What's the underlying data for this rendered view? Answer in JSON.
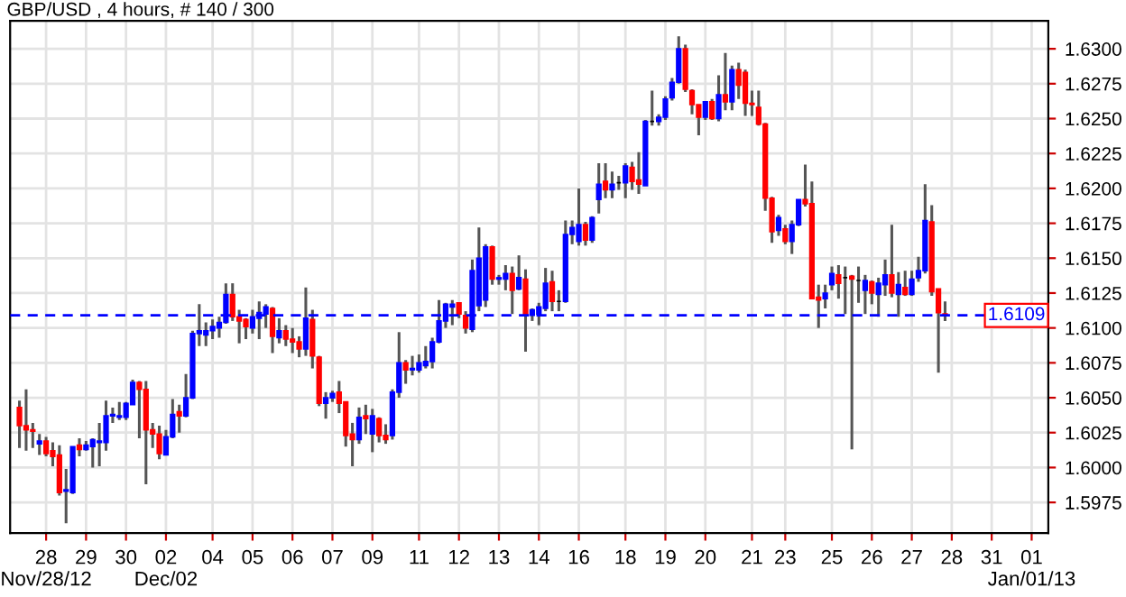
{
  "chart_data": {
    "type": "candlestick",
    "title": "GBP/USD , 4 hours, # 140 / 300",
    "categories": [
      null,
      null,
      null,
      null,
      "28\nNov/28/12",
      null,
      null,
      null,
      null,
      null,
      "29",
      null,
      null,
      null,
      null,
      null,
      "30",
      null,
      null,
      null,
      null,
      null,
      "02\nDec/02",
      null,
      null,
      null,
      null,
      null,
      null,
      "04",
      null,
      null,
      null,
      null,
      null,
      "05",
      null,
      null,
      null,
      null,
      null,
      "06",
      null,
      null,
      null,
      null,
      null,
      "07",
      null,
      null,
      null,
      null,
      null,
      "09",
      null,
      null,
      null,
      null,
      null,
      null,
      "11",
      null,
      null,
      null,
      null,
      null,
      "12",
      null,
      null,
      null,
      null,
      null,
      "13",
      null,
      null,
      null,
      null,
      null,
      "14",
      null,
      null,
      null,
      null,
      null,
      "16",
      null,
      null,
      null,
      null,
      null,
      null,
      "18",
      null,
      null,
      null,
      null,
      null,
      "19",
      null,
      null,
      null,
      null,
      null,
      "20",
      null,
      null,
      null,
      null,
      null,
      null,
      "21",
      null,
      null,
      null,
      null,
      "23",
      null,
      null,
      null,
      null,
      null,
      null,
      "25",
      null,
      null,
      null,
      null,
      null,
      "26",
      null,
      null,
      null,
      null,
      null,
      "27",
      null,
      null,
      null,
      null,
      null,
      "28",
      null,
      null,
      null,
      null,
      null,
      "31",
      null,
      null,
      null,
      null,
      null,
      "01\nJan/01/13",
      null,
      null
    ],
    "ohlc": [
      [
        1.6043,
        1.6048,
        1.6014,
        1.603
      ],
      [
        1.603,
        1.6056,
        1.6012,
        1.6027
      ],
      [
        1.6027,
        1.6032,
        1.6014,
        1.6026
      ],
      [
        1.6017,
        1.6024,
        1.6009,
        1.6019
      ],
      [
        1.6019,
        1.6022,
        1.6008,
        1.601
      ],
      [
        1.6012,
        1.6018,
        1.6001,
        1.6008
      ],
      [
        1.6009,
        1.6016,
        1.598,
        1.5982
      ],
      [
        1.5983,
        1.5999,
        1.596,
        1.5984
      ],
      [
        1.5982,
        1.6015,
        1.5981,
        1.6015
      ],
      [
        1.6016,
        1.6021,
        1.6008,
        1.6013
      ],
      [
        1.6013,
        1.6019,
        1.6012,
        1.6016
      ],
      [
        1.6015,
        1.6021,
        1.6,
        1.602
      ],
      [
        1.6018,
        1.6032,
        1.6001,
        1.6019
      ],
      [
        1.6018,
        1.6048,
        1.6012,
        1.6037
      ],
      [
        1.6037,
        1.6043,
        1.6032,
        1.6038
      ],
      [
        1.6036,
        1.6047,
        1.6034,
        1.6037
      ],
      [
        1.6036,
        1.6047,
        1.6034,
        1.6046
      ],
      [
        1.6045,
        1.6063,
        1.6045,
        1.6061
      ],
      [
        1.6061,
        1.6062,
        1.6021,
        1.6056
      ],
      [
        1.6056,
        1.6062,
        1.5988,
        1.6027
      ],
      [
        1.6027,
        1.6032,
        1.6014,
        1.6024
      ],
      [
        1.6024,
        1.603,
        1.6006,
        1.601
      ],
      [
        1.6009,
        1.6027,
        1.6009,
        1.6022
      ],
      [
        1.6022,
        1.6049,
        1.6021,
        1.6038
      ],
      [
        1.604,
        1.6045,
        1.6025,
        1.6037
      ],
      [
        1.6037,
        1.6067,
        1.6036,
        1.605
      ],
      [
        1.605,
        1.6098,
        1.6049,
        1.6096
      ],
      [
        1.6096,
        1.6117,
        1.6087,
        1.6098
      ],
      [
        1.6095,
        1.6104,
        1.6087,
        1.6098
      ],
      [
        1.6098,
        1.6106,
        1.6092,
        1.6101
      ],
      [
        1.61,
        1.6108,
        1.6093,
        1.6104
      ],
      [
        1.6104,
        1.6132,
        1.6103,
        1.6124
      ],
      [
        1.6124,
        1.6132,
        1.6105,
        1.6108
      ],
      [
        1.6108,
        1.6113,
        1.6089,
        1.6105
      ],
      [
        1.6106,
        1.6107,
        1.6092,
        1.6101
      ],
      [
        1.61,
        1.6113,
        1.6096,
        1.6108
      ],
      [
        1.6107,
        1.6119,
        1.6092,
        1.6111
      ],
      [
        1.611,
        1.6117,
        1.61,
        1.6115
      ],
      [
        1.6114,
        1.6115,
        1.6082,
        1.6094
      ],
      [
        1.6093,
        1.6107,
        1.6089,
        1.6098
      ],
      [
        1.6098,
        1.6102,
        1.6087,
        1.6092
      ],
      [
        1.6092,
        1.61,
        1.6082,
        1.609
      ],
      [
        1.609,
        1.6094,
        1.6079,
        1.6085
      ],
      [
        1.6085,
        1.6129,
        1.608,
        1.6107
      ],
      [
        1.6106,
        1.6113,
        1.6071,
        1.608
      ],
      [
        1.6079,
        1.608,
        1.6044,
        1.6046
      ],
      [
        1.6046,
        1.6054,
        1.6035,
        1.605
      ],
      [
        1.605,
        1.6055,
        1.6047,
        1.6053
      ],
      [
        1.6054,
        1.6062,
        1.6039,
        1.6046
      ],
      [
        1.6047,
        1.6047,
        1.6015,
        1.6023
      ],
      [
        1.6024,
        1.6032,
        1.6001,
        1.602
      ],
      [
        1.602,
        1.6043,
        1.6017,
        1.6036
      ],
      [
        1.6037,
        1.6045,
        1.6024,
        1.6035
      ],
      [
        1.6024,
        1.6042,
        1.6011,
        1.6037
      ],
      [
        1.6035,
        1.6036,
        1.6018,
        1.6023
      ],
      [
        1.6023,
        1.6031,
        1.6017,
        1.602
      ],
      [
        1.6023,
        1.6056,
        1.602,
        1.6054
      ],
      [
        1.6054,
        1.6097,
        1.605,
        1.6075
      ],
      [
        1.6075,
        1.6077,
        1.606,
        1.607
      ],
      [
        1.607,
        1.608,
        1.6066,
        1.6071
      ],
      [
        1.607,
        1.6081,
        1.6068,
        1.6075
      ],
      [
        1.6073,
        1.6087,
        1.6071,
        1.6076
      ],
      [
        1.6076,
        1.6093,
        1.6071,
        1.609
      ],
      [
        1.609,
        1.612,
        1.6089,
        1.6105
      ],
      [
        1.6105,
        1.6118,
        1.61,
        1.6117
      ],
      [
        1.6115,
        1.612,
        1.6102,
        1.6117
      ],
      [
        1.6118,
        1.6118,
        1.6107,
        1.611
      ],
      [
        1.6109,
        1.6112,
        1.6096,
        1.61
      ],
      [
        1.6099,
        1.6149,
        1.6097,
        1.6141
      ],
      [
        1.6116,
        1.6172,
        1.6112,
        1.615
      ],
      [
        1.612,
        1.616,
        1.6115,
        1.6158
      ],
      [
        1.6158,
        1.6159,
        1.6131,
        1.6135
      ],
      [
        1.6135,
        1.6138,
        1.6131,
        1.6136
      ],
      [
        1.6135,
        1.6145,
        1.6127,
        1.6139
      ],
      [
        1.6139,
        1.6144,
        1.611,
        1.6127
      ],
      [
        1.6128,
        1.6152,
        1.6127,
        1.6136
      ],
      [
        1.6135,
        1.6142,
        1.6083,
        1.611
      ],
      [
        1.6109,
        1.6114,
        1.6105,
        1.6113
      ],
      [
        1.611,
        1.6118,
        1.6102,
        1.6115
      ],
      [
        1.6114,
        1.6143,
        1.6112,
        1.6132
      ],
      [
        1.6133,
        1.6141,
        1.6112,
        1.6119
      ],
      [
        1.6119,
        1.6127,
        1.6112,
        1.6119
      ],
      [
        1.6119,
        1.6177,
        1.6118,
        1.6167
      ],
      [
        1.6167,
        1.6177,
        1.616,
        1.6172
      ],
      [
        1.6162,
        1.62,
        1.6159,
        1.6174
      ],
      [
        1.6174,
        1.6176,
        1.6159,
        1.6163
      ],
      [
        1.6163,
        1.618,
        1.6161,
        1.6179
      ],
      [
        1.6192,
        1.6218,
        1.6182,
        1.6203
      ],
      [
        1.6205,
        1.6218,
        1.6193,
        1.6199
      ],
      [
        1.6199,
        1.6212,
        1.6193,
        1.6203
      ],
      [
        1.6204,
        1.6209,
        1.6199,
        1.6204
      ],
      [
        1.6204,
        1.6218,
        1.6193,
        1.6216
      ],
      [
        1.6215,
        1.6219,
        1.6199,
        1.6205
      ],
      [
        1.6206,
        1.6226,
        1.6196,
        1.6203
      ],
      [
        1.6202,
        1.6249,
        1.6202,
        1.6248
      ],
      [
        1.6248,
        1.627,
        1.6245,
        1.6248
      ],
      [
        1.6248,
        1.6253,
        1.6245,
        1.6251
      ],
      [
        1.6251,
        1.6266,
        1.6249,
        1.6264
      ],
      [
        1.6265,
        1.6279,
        1.6263,
        1.6276
      ],
      [
        1.6276,
        1.6309,
        1.6275,
        1.63
      ],
      [
        1.63,
        1.6303,
        1.6269,
        1.6271
      ],
      [
        1.627,
        1.6271,
        1.6253,
        1.626
      ],
      [
        1.626,
        1.626,
        1.6238,
        1.6251
      ],
      [
        1.6251,
        1.6262,
        1.6249,
        1.6262
      ],
      [
        1.6262,
        1.6264,
        1.6249,
        1.625
      ],
      [
        1.625,
        1.6281,
        1.6248,
        1.6267
      ],
      [
        1.6267,
        1.6297,
        1.6256,
        1.6262
      ],
      [
        1.6262,
        1.6288,
        1.6256,
        1.6285
      ],
      [
        1.6285,
        1.629,
        1.6264,
        1.6274
      ],
      [
        1.6283,
        1.6285,
        1.6252,
        1.6261
      ],
      [
        1.6261,
        1.627,
        1.6252,
        1.626
      ],
      [
        1.6258,
        1.627,
        1.6245,
        1.6246
      ],
      [
        1.6246,
        1.6247,
        1.6184,
        1.6193
      ],
      [
        1.6193,
        1.6194,
        1.6161,
        1.6169
      ],
      [
        1.617,
        1.6181,
        1.6166,
        1.6179
      ],
      [
        1.6171,
        1.6174,
        1.616,
        1.6162
      ],
      [
        1.6162,
        1.6177,
        1.6153,
        1.6174
      ],
      [
        1.6174,
        1.6192,
        1.6173,
        1.6192
      ],
      [
        1.6192,
        1.6217,
        1.6187,
        1.6189
      ],
      [
        1.6189,
        1.6205,
        1.6121,
        1.6121
      ],
      [
        1.6122,
        1.6131,
        1.61,
        1.612
      ],
      [
        1.6121,
        1.6131,
        1.6114,
        1.6125
      ],
      [
        1.6131,
        1.6144,
        1.6127,
        1.6139
      ],
      [
        1.6138,
        1.6145,
        1.6121,
        1.6132
      ],
      [
        1.6136,
        1.6144,
        1.611,
        1.6136
      ],
      [
        1.6137,
        1.6138,
        1.6013,
        1.6135
      ],
      [
        1.6134,
        1.6144,
        1.6118,
        1.6134
      ],
      [
        1.6127,
        1.6138,
        1.611,
        1.6134
      ],
      [
        1.6133,
        1.6134,
        1.6117,
        1.6125
      ],
      [
        1.6124,
        1.6136,
        1.6108,
        1.6132
      ],
      [
        1.6131,
        1.6149,
        1.6123,
        1.6138
      ],
      [
        1.6138,
        1.6174,
        1.6122,
        1.6125
      ],
      [
        1.6124,
        1.614,
        1.6108,
        1.6131
      ],
      [
        1.6129,
        1.6141,
        1.6123,
        1.6124
      ],
      [
        1.6124,
        1.6141,
        1.6123,
        1.6135
      ],
      [
        1.6136,
        1.6151,
        1.6133,
        1.6141
      ],
      [
        1.6141,
        1.6203,
        1.6139,
        1.6177
      ],
      [
        1.6176,
        1.6188,
        1.6123,
        1.6126
      ],
      [
        1.6128,
        1.6128,
        1.6068,
        1.6111
      ],
      [
        1.611,
        1.6119,
        1.6105,
        1.6109
      ],
      null,
      null,
      null,
      null,
      null,
      null,
      null,
      null,
      null,
      null,
      null,
      null,
      null,
      null,
      null
    ],
    "colors": [
      "#ff0000",
      "#ff0000",
      "#ff0000",
      "#0000ff",
      "#ff0000",
      "#ff0000",
      "#ff0000",
      "#0000ff",
      "#0000ff",
      "#ff0000",
      "#0000ff",
      "#0000ff",
      "#0000ff",
      "#0000ff",
      "#0000ff",
      "#0000ff",
      "#0000ff",
      "#0000ff",
      "#ff0000",
      "#ff0000",
      "#ff0000",
      "#ff0000",
      "#0000ff",
      "#0000ff",
      "#ff0000",
      "#0000ff",
      "#0000ff",
      "#0000ff",
      "#0000ff",
      "#0000ff",
      "#0000ff",
      "#0000ff",
      "#ff0000",
      "#ff0000",
      "#ff0000",
      "#0000ff",
      "#0000ff",
      "#0000ff",
      "#ff0000",
      "#0000ff",
      "#ff0000",
      "#ff0000",
      "#ff0000",
      "#0000ff",
      "#ff0000",
      "#ff0000",
      "#0000ff",
      "#0000ff",
      "#ff0000",
      "#ff0000",
      "#ff0000",
      "#0000ff",
      "#ff0000",
      "#0000ff",
      "#ff0000",
      "#ff0000",
      "#0000ff",
      "#0000ff",
      "#ff0000",
      "#0000ff",
      "#0000ff",
      "#0000ff",
      "#0000ff",
      "#0000ff",
      "#0000ff",
      "#0000ff",
      "#ff0000",
      "#ff0000",
      "#0000ff",
      "#0000ff",
      "#0000ff",
      "#ff0000",
      "#0000ff",
      "#0000ff",
      "#ff0000",
      "#0000ff",
      "#ff0000",
      "#0000ff",
      "#0000ff",
      "#0000ff",
      "#ff0000",
      "#000000",
      "#0000ff",
      "#0000ff",
      "#0000ff",
      "#ff0000",
      "#0000ff",
      "#0000ff",
      "#ff0000",
      "#0000ff",
      "#000000",
      "#0000ff",
      "#ff0000",
      "#ff0000",
      "#0000ff",
      "#000000",
      "#0000ff",
      "#0000ff",
      "#0000ff",
      "#0000ff",
      "#ff0000",
      "#ff0000",
      "#ff0000",
      "#0000ff",
      "#ff0000",
      "#0000ff",
      "#ff0000",
      "#0000ff",
      "#ff0000",
      "#ff0000",
      "#ff0000",
      "#ff0000",
      "#ff0000",
      "#ff0000",
      "#0000ff",
      "#ff0000",
      "#0000ff",
      "#0000ff",
      "#ff0000",
      "#ff0000",
      "#ff0000",
      "#0000ff",
      "#0000ff",
      "#ff0000",
      "#000000",
      "#ff0000",
      "#000000",
      "#0000ff",
      "#ff0000",
      "#0000ff",
      "#0000ff",
      "#ff0000",
      "#0000ff",
      "#ff0000",
      "#0000ff",
      "#0000ff",
      "#0000ff",
      "#ff0000",
      "#ff0000",
      "#ff0000",
      null,
      null,
      null,
      null,
      null,
      null,
      null,
      null,
      null,
      null,
      null,
      null,
      null,
      null,
      null
    ],
    "ylim": [
      1.5953,
      1.632
    ],
    "yticks": [
      {
        "value": 1.5975,
        "label": "1.5975"
      },
      {
        "value": 1.6,
        "label": "1.6000"
      },
      {
        "value": 1.6025,
        "label": "1.6025"
      },
      {
        "value": 1.605,
        "label": "1.6050"
      },
      {
        "value": 1.6075,
        "label": "1.6075"
      },
      {
        "value": 1.61,
        "label": "1.6100"
      },
      {
        "value": 1.6125,
        "label": "1.6125"
      },
      {
        "value": 1.615,
        "label": "1.6150"
      },
      {
        "value": 1.6175,
        "label": "1.6175"
      },
      {
        "value": 1.62,
        "label": "1.6200"
      },
      {
        "value": 1.6225,
        "label": "1.6225"
      },
      {
        "value": 1.625,
        "label": "1.6250"
      },
      {
        "value": 1.6275,
        "label": "1.6275"
      },
      {
        "value": 1.63,
        "label": "1.6300"
      }
    ],
    "ref_lines": [
      {
        "axis": "y",
        "value": 1.6109,
        "label": "1.6109",
        "color": "#0000ff",
        "line_style": "dashed"
      }
    ],
    "grid": true
  }
}
